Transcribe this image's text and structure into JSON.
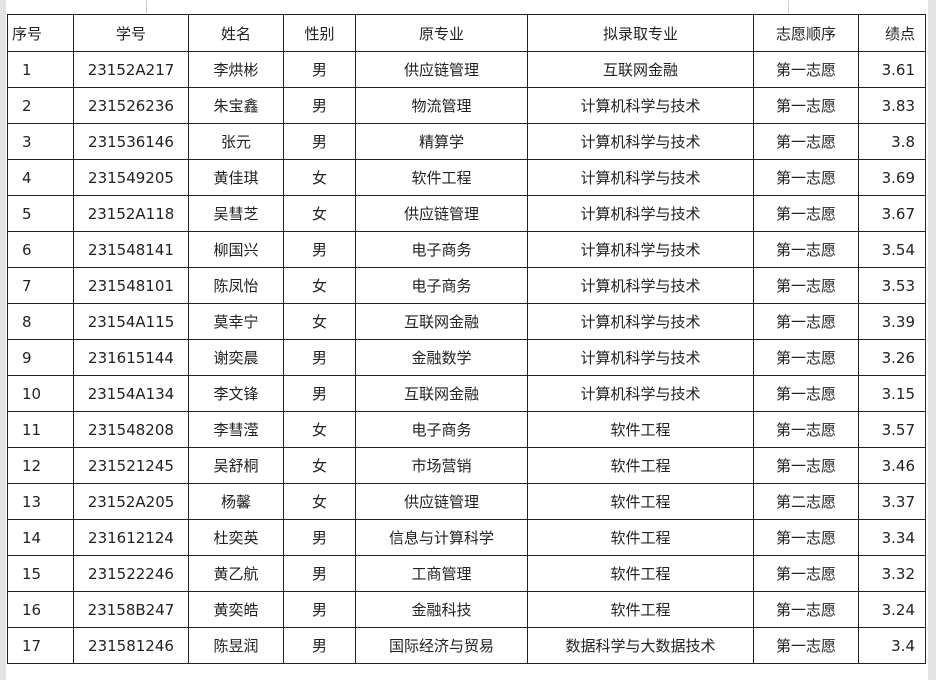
{
  "headers": [
    "序号",
    "学号",
    "姓名",
    "性别",
    "原专业",
    "拟录取专业",
    "志愿顺序",
    "绩点"
  ],
  "rows": [
    [
      "1",
      "23152A217",
      "李烘彬",
      "男",
      "供应链管理",
      "互联网金融",
      "第一志愿",
      "3.61"
    ],
    [
      "2",
      "231526236",
      "朱宝鑫",
      "男",
      "物流管理",
      "计算机科学与技术",
      "第一志愿",
      "3.83"
    ],
    [
      "3",
      "231536146",
      "张元",
      "男",
      "精算学",
      "计算机科学与技术",
      "第一志愿",
      "3.8"
    ],
    [
      "4",
      "231549205",
      "黄佳琪",
      "女",
      "软件工程",
      "计算机科学与技术",
      "第一志愿",
      "3.69"
    ],
    [
      "5",
      "23152A118",
      "吴彗芝",
      "女",
      "供应链管理",
      "计算机科学与技术",
      "第一志愿",
      "3.67"
    ],
    [
      "6",
      "231548141",
      "柳国兴",
      "男",
      "电子商务",
      "计算机科学与技术",
      "第一志愿",
      "3.54"
    ],
    [
      "7",
      "231548101",
      "陈凤怡",
      "女",
      "电子商务",
      "计算机科学与技术",
      "第一志愿",
      "3.53"
    ],
    [
      "8",
      "23154A115",
      "莫幸宁",
      "女",
      "互联网金融",
      "计算机科学与技术",
      "第一志愿",
      "3.39"
    ],
    [
      "9",
      "231615144",
      "谢奕晨",
      "男",
      "金融数学",
      "计算机科学与技术",
      "第一志愿",
      "3.26"
    ],
    [
      "10",
      "23154A134",
      "李文锋",
      "男",
      "互联网金融",
      "计算机科学与技术",
      "第一志愿",
      "3.15"
    ],
    [
      "11",
      "231548208",
      "李彗滢",
      "女",
      "电子商务",
      "软件工程",
      "第一志愿",
      "3.57"
    ],
    [
      "12",
      "231521245",
      "吴舒桐",
      "女",
      "市场营销",
      "软件工程",
      "第一志愿",
      "3.46"
    ],
    [
      "13",
      "23152A205",
      "杨馨",
      "女",
      "供应链管理",
      "软件工程",
      "第二志愿",
      "3.37"
    ],
    [
      "14",
      "231612124",
      "杜奕英",
      "男",
      "信息与计算科学",
      "软件工程",
      "第一志愿",
      "3.34"
    ],
    [
      "15",
      "231522246",
      "黄乙航",
      "男",
      "工商管理",
      "软件工程",
      "第一志愿",
      "3.32"
    ],
    [
      "16",
      "23158B247",
      "黄奕皓",
      "男",
      "金融科技",
      "软件工程",
      "第一志愿",
      "3.24"
    ],
    [
      "17",
      "231581246",
      "陈昱润",
      "男",
      "国际经济与贸易",
      "数据科学与大数据技术",
      "第一志愿",
      "3.4"
    ]
  ]
}
